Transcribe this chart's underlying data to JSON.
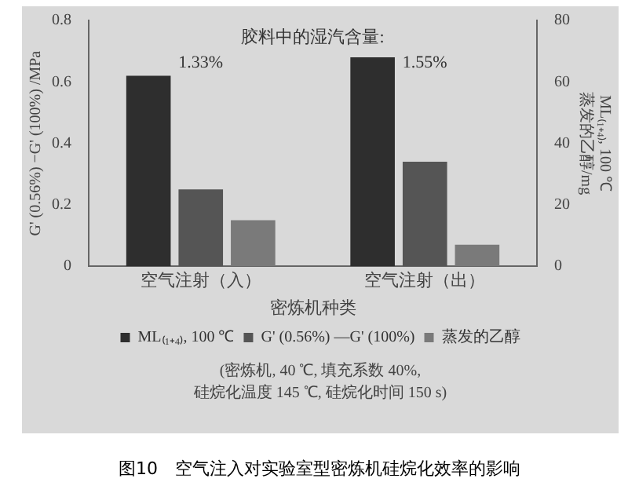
{
  "chart_data": {
    "type": "bar",
    "subtitle": "图10　空气注入对实验室型密炼机硅烷化效率的影响",
    "xlabel": "密炼机种类",
    "ylabel": "G' (0.56%) −G' (100%) /MPa",
    "y2label": "ML₍₁₊₄₎, 100 ℃\n蒸发的乙醇/mg",
    "categories": [
      "空气注射（入）",
      "空气注射（出）"
    ],
    "series": [
      {
        "name": "ML₍₁₊₄₎, 100 ℃",
        "color": "#2e2e2e",
        "values": [
          62,
          68
        ],
        "axis": "y2"
      },
      {
        "name": "G' (0.56%) —G' (100%)",
        "color": "#555555",
        "values": [
          0.25,
          0.34
        ],
        "axis": "y"
      },
      {
        "name": "蒸发的乙醇",
        "color": "#7a7a7a",
        "values": [
          15,
          7
        ],
        "axis": "y2"
      }
    ],
    "ylim": [
      0,
      0.8
    ],
    "yticks": [
      0,
      0.2,
      0.4,
      0.6,
      0.8
    ],
    "y2lim": [
      0,
      80
    ],
    "y2ticks": [
      0,
      20,
      40,
      60,
      80
    ],
    "legend": "bottom",
    "grid": false,
    "annotations": [
      "胶料中的湿汽含量:",
      "1.33%",
      "1.55%",
      "(密炼机, 40 ℃, 填充系数 40%,\n硅烷化温度 145 ℃, 硅烷化时间 150 s)"
    ]
  }
}
